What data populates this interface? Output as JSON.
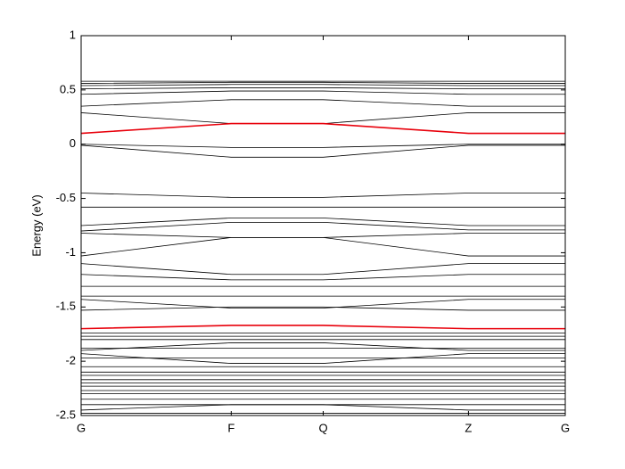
{
  "chart_data": {
    "type": "line",
    "ylabel": "Energy (eV)",
    "x": [
      0,
      0.31,
      0.5,
      0.8,
      1
    ],
    "xlim": [
      0,
      1
    ],
    "xticks": [
      {
        "value": 0,
        "label": "G"
      },
      {
        "value": 0.31,
        "label": "F"
      },
      {
        "value": 0.5,
        "label": "Q"
      },
      {
        "value": 0.8,
        "label": "Z"
      },
      {
        "value": 1,
        "label": "G"
      }
    ],
    "ylim": [
      -2.5,
      1
    ],
    "yticks": [
      -2.5,
      -2,
      -1.5,
      -1,
      -0.5,
      0,
      0.5,
      1
    ],
    "grid": false,
    "series": [
      {
        "color": "#000000",
        "values": [
          0.58,
          0.58,
          0.58,
          0.58,
          0.58
        ]
      },
      {
        "color": "#000000",
        "values": [
          0.56,
          0.57,
          0.57,
          0.56,
          0.56
        ]
      },
      {
        "color": "#000000",
        "values": [
          0.54,
          0.55,
          0.55,
          0.54,
          0.54
        ]
      },
      {
        "color": "#000000",
        "values": [
          0.51,
          0.52,
          0.52,
          0.51,
          0.51
        ]
      },
      {
        "color": "#000000",
        "values": [
          0.46,
          0.49,
          0.49,
          0.46,
          0.46
        ]
      },
      {
        "color": "#000000",
        "values": [
          0.35,
          0.41,
          0.41,
          0.35,
          0.35
        ]
      },
      {
        "color": "#000000",
        "values": [
          0.29,
          0.19,
          0.19,
          0.29,
          0.29
        ]
      },
      {
        "color": "#e8000b",
        "values": [
          0.1,
          0.19,
          0.19,
          0.1,
          0.1
        ]
      },
      {
        "color": "#000000",
        "values": [
          0.0,
          -0.03,
          -0.03,
          0.0,
          0.0
        ]
      },
      {
        "color": "#000000",
        "values": [
          -0.01,
          -0.12,
          -0.12,
          -0.01,
          -0.01
        ]
      },
      {
        "color": "#000000",
        "values": [
          -0.45,
          -0.49,
          -0.49,
          -0.45,
          -0.45
        ]
      },
      {
        "color": "#000000",
        "values": [
          -0.58,
          -0.58,
          -0.58,
          -0.58,
          -0.58
        ]
      },
      {
        "color": "#000000",
        "values": [
          -0.75,
          -0.68,
          -0.68,
          -0.75,
          -0.75
        ]
      },
      {
        "color": "#000000",
        "values": [
          -0.8,
          -0.72,
          -0.72,
          -0.79,
          -0.79
        ]
      },
      {
        "color": "#000000",
        "values": [
          -0.82,
          -0.86,
          -0.86,
          -0.82,
          -0.82
        ]
      },
      {
        "color": "#000000",
        "values": [
          -1.03,
          -0.86,
          -0.86,
          -1.03,
          -1.03
        ]
      },
      {
        "color": "#000000",
        "values": [
          -1.1,
          -1.2,
          -1.2,
          -1.1,
          -1.1
        ]
      },
      {
        "color": "#000000",
        "values": [
          -1.2,
          -1.25,
          -1.25,
          -1.2,
          -1.2
        ]
      },
      {
        "color": "#000000",
        "values": [
          -1.31,
          -1.31,
          -1.31,
          -1.31,
          -1.31
        ]
      },
      {
        "color": "#000000",
        "values": [
          -1.4,
          -1.4,
          -1.4,
          -1.4,
          -1.4
        ]
      },
      {
        "color": "#000000",
        "values": [
          -1.43,
          -1.51,
          -1.51,
          -1.43,
          -1.43
        ]
      },
      {
        "color": "#000000",
        "values": [
          -1.53,
          -1.5,
          -1.5,
          -1.53,
          -1.53
        ]
      },
      {
        "color": "#e8000b",
        "values": [
          -1.7,
          -1.67,
          -1.67,
          -1.7,
          -1.7
        ]
      },
      {
        "color": "#000000",
        "values": [
          -1.74,
          -1.74,
          -1.74,
          -1.74,
          -1.74
        ]
      },
      {
        "color": "#000000",
        "values": [
          -1.77,
          -1.77,
          -1.77,
          -1.77,
          -1.77
        ]
      },
      {
        "color": "#000000",
        "values": [
          -1.8,
          -1.8,
          -1.8,
          -1.8,
          -1.8
        ]
      },
      {
        "color": "#000000",
        "values": [
          -1.9,
          -1.83,
          -1.83,
          -1.9,
          -1.9
        ]
      },
      {
        "color": "#000000",
        "values": [
          -1.88,
          -1.88,
          -1.88,
          -1.88,
          -1.88
        ]
      },
      {
        "color": "#000000",
        "values": [
          -1.93,
          -2.02,
          -2.02,
          -1.93,
          -1.93
        ]
      },
      {
        "color": "#000000",
        "values": [
          -1.97,
          -1.97,
          -1.97,
          -1.97,
          -1.97
        ]
      },
      {
        "color": "#000000",
        "values": [
          -2.05,
          -2.05,
          -2.05,
          -2.05,
          -2.05
        ]
      },
      {
        "color": "#000000",
        "values": [
          -2.1,
          -2.1,
          -2.1,
          -2.1,
          -2.1
        ]
      },
      {
        "color": "#000000",
        "values": [
          -2.13,
          -2.13,
          -2.13,
          -2.13,
          -2.13
        ]
      },
      {
        "color": "#000000",
        "values": [
          -2.17,
          -2.17,
          -2.17,
          -2.17,
          -2.17
        ]
      },
      {
        "color": "#000000",
        "values": [
          -2.2,
          -2.2,
          -2.2,
          -2.2,
          -2.2
        ]
      },
      {
        "color": "#000000",
        "values": [
          -2.23,
          -2.23,
          -2.23,
          -2.23,
          -2.23
        ]
      },
      {
        "color": "#000000",
        "values": [
          -2.27,
          -2.27,
          -2.27,
          -2.27,
          -2.27
        ]
      },
      {
        "color": "#000000",
        "values": [
          -2.3,
          -2.3,
          -2.3,
          -2.3,
          -2.3
        ]
      },
      {
        "color": "#000000",
        "values": [
          -2.35,
          -2.35,
          -2.35,
          -2.35,
          -2.35
        ]
      },
      {
        "color": "#000000",
        "values": [
          -2.4,
          -2.4,
          -2.4,
          -2.4,
          -2.4
        ]
      },
      {
        "color": "#000000",
        "values": [
          -2.45,
          -2.4,
          -2.4,
          -2.45,
          -2.45
        ]
      },
      {
        "color": "#000000",
        "values": [
          -2.48,
          -2.48,
          -2.48,
          -2.48,
          -2.48
        ]
      }
    ]
  }
}
